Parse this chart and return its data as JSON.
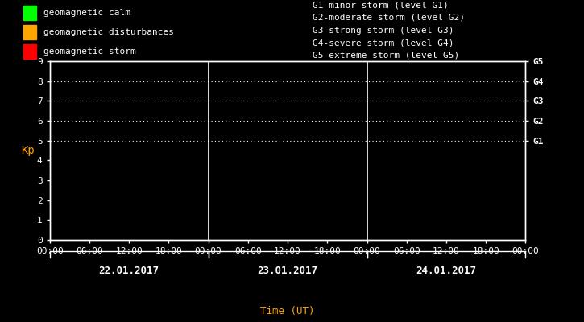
{
  "bg_color": "#000000",
  "fg_color": "#ffffff",
  "orange_color": "#ffa500",
  "plot_bg": "#000000",
  "ylim": [
    0,
    9
  ],
  "yticks": [
    0,
    1,
    2,
    3,
    4,
    5,
    6,
    7,
    8,
    9
  ],
  "g_labels": {
    "5": "G1",
    "6": "G2",
    "7": "G3",
    "8": "G4",
    "9": "G5"
  },
  "days": [
    "22.01.2017",
    "23.01.2017",
    "24.01.2017"
  ],
  "xlabel": "Time (UT)",
  "ylabel": "Kp",
  "legend_items": [
    {
      "label": "geomagnetic calm",
      "color": "#00ff00"
    },
    {
      "label": "geomagnetic disturbances",
      "color": "#ffa500"
    },
    {
      "label": "geomagnetic storm",
      "color": "#ff0000"
    }
  ],
  "storm_labels": [
    "G1-minor storm (level G1)",
    "G2-moderate storm (level G2)",
    "G3-strong storm (level G3)",
    "G4-severe storm (level G4)",
    "G5-extreme storm (level G5)"
  ],
  "font_size": 8,
  "num_days": 3,
  "hours_per_day": 24,
  "tick_interval_hours": 6
}
